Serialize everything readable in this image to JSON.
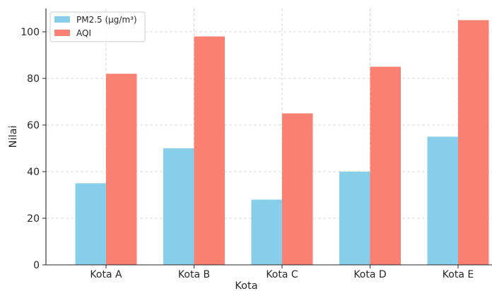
{
  "chart_data": {
    "type": "bar",
    "title": "",
    "xlabel": "Kota",
    "ylabel": "Nilai",
    "categories": [
      "Kota A",
      "Kota B",
      "Kota C",
      "Kota D",
      "Kota E"
    ],
    "series": [
      {
        "name": "PM2.5 (µg/m³)",
        "values": [
          35,
          50,
          28,
          40,
          55
        ],
        "color": "#87CEEB"
      },
      {
        "name": "AQI",
        "values": [
          82,
          98,
          65,
          85,
          105
        ],
        "color": "#FA8072"
      }
    ],
    "ylim": [
      0,
      110
    ],
    "yticks": [
      0,
      20,
      40,
      60,
      80,
      100
    ],
    "grid": true,
    "legend": "top-left"
  }
}
